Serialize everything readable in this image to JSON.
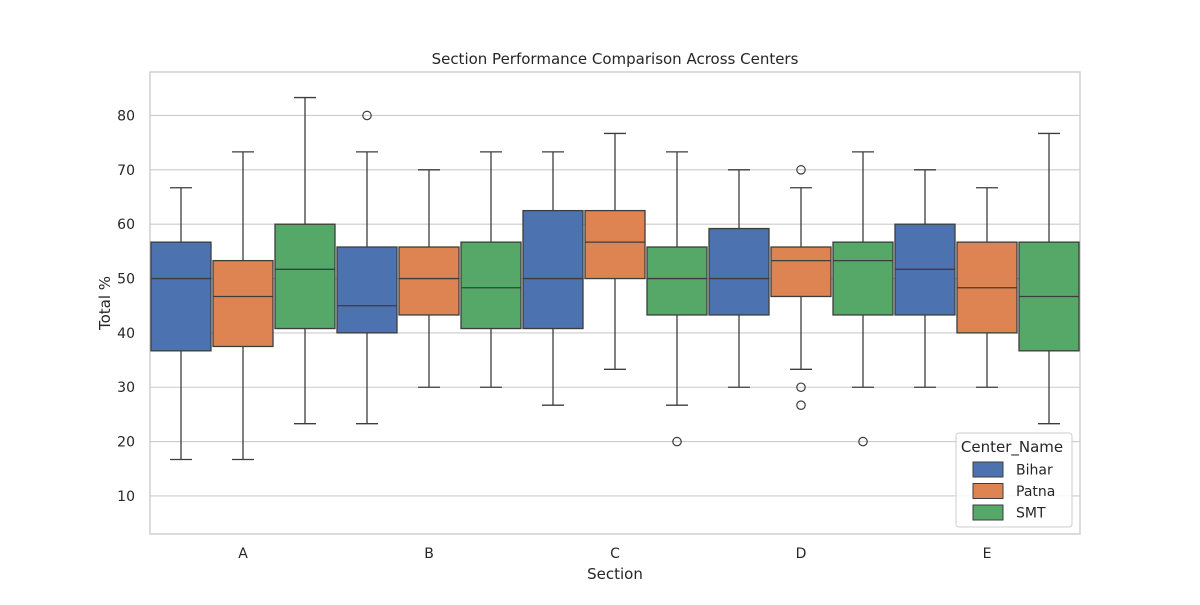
{
  "chart_data": {
    "type": "boxplot",
    "title": "Section Performance Comparison Across Centers",
    "xlabel": "Section",
    "ylabel": "Total %",
    "ylim": [
      3,
      88
    ],
    "yticks": [
      10,
      20,
      30,
      40,
      50,
      60,
      70,
      80
    ],
    "categories": [
      "A",
      "B",
      "C",
      "D",
      "E"
    ],
    "grid": "y",
    "legend": {
      "title": "Center_Name",
      "position": "bottom-right",
      "entries": [
        "Bihar",
        "Patna",
        "SMT"
      ]
    },
    "series": [
      {
        "name": "Bihar",
        "color": "#4c72b0",
        "boxes": [
          {
            "category": "A",
            "whisker_low": 16.7,
            "q1": 36.7,
            "median": 50.0,
            "q3": 56.7,
            "whisker_high": 66.7,
            "outliers": []
          },
          {
            "category": "B",
            "whisker_low": 23.3,
            "q1": 40.0,
            "median": 45.0,
            "q3": 55.8,
            "whisker_high": 73.3,
            "outliers": [
              80.0
            ]
          },
          {
            "category": "C",
            "whisker_low": 26.7,
            "q1": 40.8,
            "median": 50.0,
            "q3": 62.5,
            "whisker_high": 73.3,
            "outliers": []
          },
          {
            "category": "D",
            "whisker_low": 30.0,
            "q1": 43.3,
            "median": 50.0,
            "q3": 59.2,
            "whisker_high": 70.0,
            "outliers": []
          },
          {
            "category": "E",
            "whisker_low": 30.0,
            "q1": 43.3,
            "median": 51.7,
            "q3": 60.0,
            "whisker_high": 70.0,
            "outliers": []
          }
        ]
      },
      {
        "name": "Patna",
        "color": "#dd8452",
        "boxes": [
          {
            "category": "A",
            "whisker_low": 16.7,
            "q1": 37.5,
            "median": 46.7,
            "q3": 53.3,
            "whisker_high": 73.3,
            "outliers": []
          },
          {
            "category": "B",
            "whisker_low": 30.0,
            "q1": 43.3,
            "median": 50.0,
            "q3": 55.8,
            "whisker_high": 70.0,
            "outliers": []
          },
          {
            "category": "C",
            "whisker_low": 33.3,
            "q1": 50.0,
            "median": 56.7,
            "q3": 62.5,
            "whisker_high": 76.7,
            "outliers": []
          },
          {
            "category": "D",
            "whisker_low": 33.3,
            "q1": 46.7,
            "median": 53.3,
            "q3": 55.8,
            "whisker_high": 66.7,
            "outliers": [
              70.0,
              30.0,
              26.7
            ]
          },
          {
            "category": "E",
            "whisker_low": 30.0,
            "q1": 40.0,
            "median": 48.3,
            "q3": 56.7,
            "whisker_high": 66.7,
            "outliers": []
          }
        ]
      },
      {
        "name": "SMT",
        "color": "#55a868",
        "boxes": [
          {
            "category": "A",
            "whisker_low": 23.3,
            "q1": 40.8,
            "median": 51.7,
            "q3": 60.0,
            "whisker_high": 83.3,
            "outliers": []
          },
          {
            "category": "B",
            "whisker_low": 30.0,
            "q1": 40.8,
            "median": 48.3,
            "q3": 56.7,
            "whisker_high": 73.3,
            "outliers": []
          },
          {
            "category": "C",
            "whisker_low": 26.7,
            "q1": 43.3,
            "median": 50.0,
            "q3": 55.8,
            "whisker_high": 73.3,
            "outliers": [
              20.0
            ]
          },
          {
            "category": "D",
            "whisker_low": 30.0,
            "q1": 43.3,
            "median": 53.3,
            "q3": 56.7,
            "whisker_high": 73.3,
            "outliers": [
              20.0
            ]
          },
          {
            "category": "E",
            "whisker_low": 23.3,
            "q1": 36.7,
            "median": 46.7,
            "q3": 56.7,
            "whisker_high": 76.7,
            "outliers": []
          }
        ]
      }
    ]
  }
}
